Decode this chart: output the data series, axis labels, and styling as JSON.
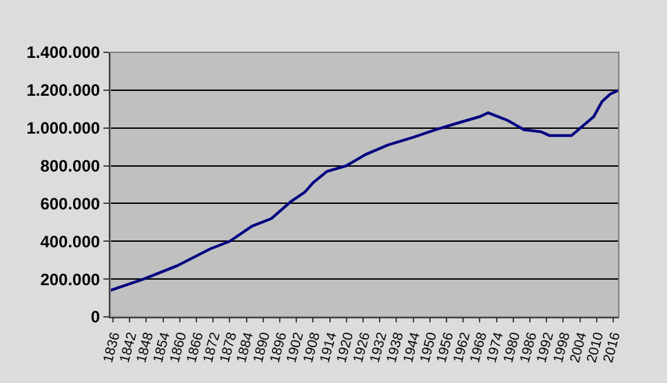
{
  "chart_data": {
    "type": "line",
    "x": [
      1835,
      1847,
      1859,
      1871,
      1878,
      1886,
      1893,
      1900,
      1905,
      1908,
      1913,
      1920,
      1927,
      1935,
      1944,
      1952,
      1961,
      1968,
      1971,
      1978,
      1984,
      1990,
      1993,
      2001,
      2005,
      2009,
      2012,
      2015,
      2018
    ],
    "series": [
      {
        "color": "#000080",
        "values": [
          140000,
          200000,
          270000,
          360000,
          400000,
          480000,
          520000,
          610000,
          660000,
          710000,
          770000,
          800000,
          860000,
          910000,
          950000,
          990000,
          1030000,
          1060000,
          1080000,
          1040000,
          990000,
          980000,
          960000,
          960000,
          1010000,
          1060000,
          1140000,
          1180000,
          1200000
        ]
      }
    ],
    "xlim": [
      1835,
      2018
    ],
    "xticks": [
      1836,
      1842,
      1848,
      1854,
      1860,
      1866,
      1872,
      1878,
      1884,
      1890,
      1896,
      1902,
      1908,
      1914,
      1920,
      1926,
      1932,
      1938,
      1944,
      1950,
      1956,
      1962,
      1968,
      1974,
      1980,
      1986,
      1992,
      1998,
      2004,
      2010,
      2016
    ],
    "ylim": [
      0,
      1400000
    ],
    "yticks": [
      {
        "value": 0,
        "label": "0"
      },
      {
        "value": 200000,
        "label": "200.000"
      },
      {
        "value": 400000,
        "label": "400.000"
      },
      {
        "value": 600000,
        "label": "600.000"
      },
      {
        "value": 800000,
        "label": "800.000"
      },
      {
        "value": 1000000,
        "label": "1.000.000"
      },
      {
        "value": 1200000,
        "label": "1.200.000"
      },
      {
        "value": 1400000,
        "label": "1.400.000"
      }
    ],
    "grid": "y",
    "marker": "none",
    "line_style": "solid"
  }
}
